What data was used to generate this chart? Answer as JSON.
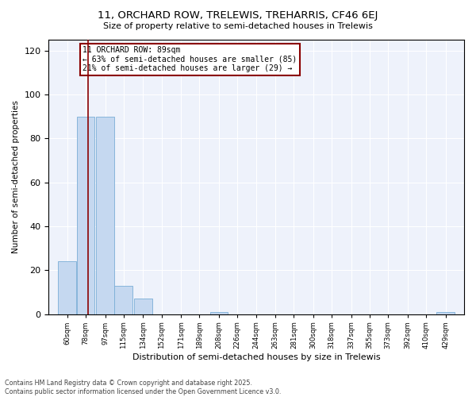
{
  "title1": "11, ORCHARD ROW, TRELEWIS, TREHARRIS, CF46 6EJ",
  "title2": "Size of property relative to semi-detached houses in Trelewis",
  "xlabel": "Distribution of semi-detached houses by size in Trelewis",
  "ylabel": "Number of semi-detached properties",
  "bin_labels": [
    "60sqm",
    "78sqm",
    "97sqm",
    "115sqm",
    "134sqm",
    "152sqm",
    "171sqm",
    "189sqm",
    "208sqm",
    "226sqm",
    "244sqm",
    "263sqm",
    "281sqm",
    "300sqm",
    "318sqm",
    "337sqm",
    "355sqm",
    "373sqm",
    "392sqm",
    "410sqm",
    "429sqm"
  ],
  "bin_edges": [
    60,
    78,
    97,
    115,
    134,
    152,
    171,
    189,
    208,
    226,
    244,
    263,
    281,
    300,
    318,
    337,
    355,
    373,
    392,
    410,
    429
  ],
  "bar_heights": [
    24,
    90,
    90,
    13,
    7,
    0,
    0,
    0,
    1,
    0,
    0,
    0,
    0,
    0,
    0,
    0,
    0,
    0,
    0,
    0,
    1
  ],
  "bar_color": "#c5d8f0",
  "bar_edge_color": "#7aaed6",
  "property_size": 89,
  "vline_color": "#8b0000",
  "annotation_title": "11 ORCHARD ROW: 89sqm",
  "annotation_line1": "← 63% of semi-detached houses are smaller (85)",
  "annotation_line2": "21% of semi-detached houses are larger (29) →",
  "annotation_box_color": "#ffffff",
  "annotation_border_color": "#8b0000",
  "ylim": [
    0,
    125
  ],
  "yticks": [
    0,
    20,
    40,
    60,
    80,
    100,
    120
  ],
  "background_color": "#eef2fb",
  "footer1": "Contains HM Land Registry data © Crown copyright and database right 2025.",
  "footer2": "Contains public sector information licensed under the Open Government Licence v3.0."
}
